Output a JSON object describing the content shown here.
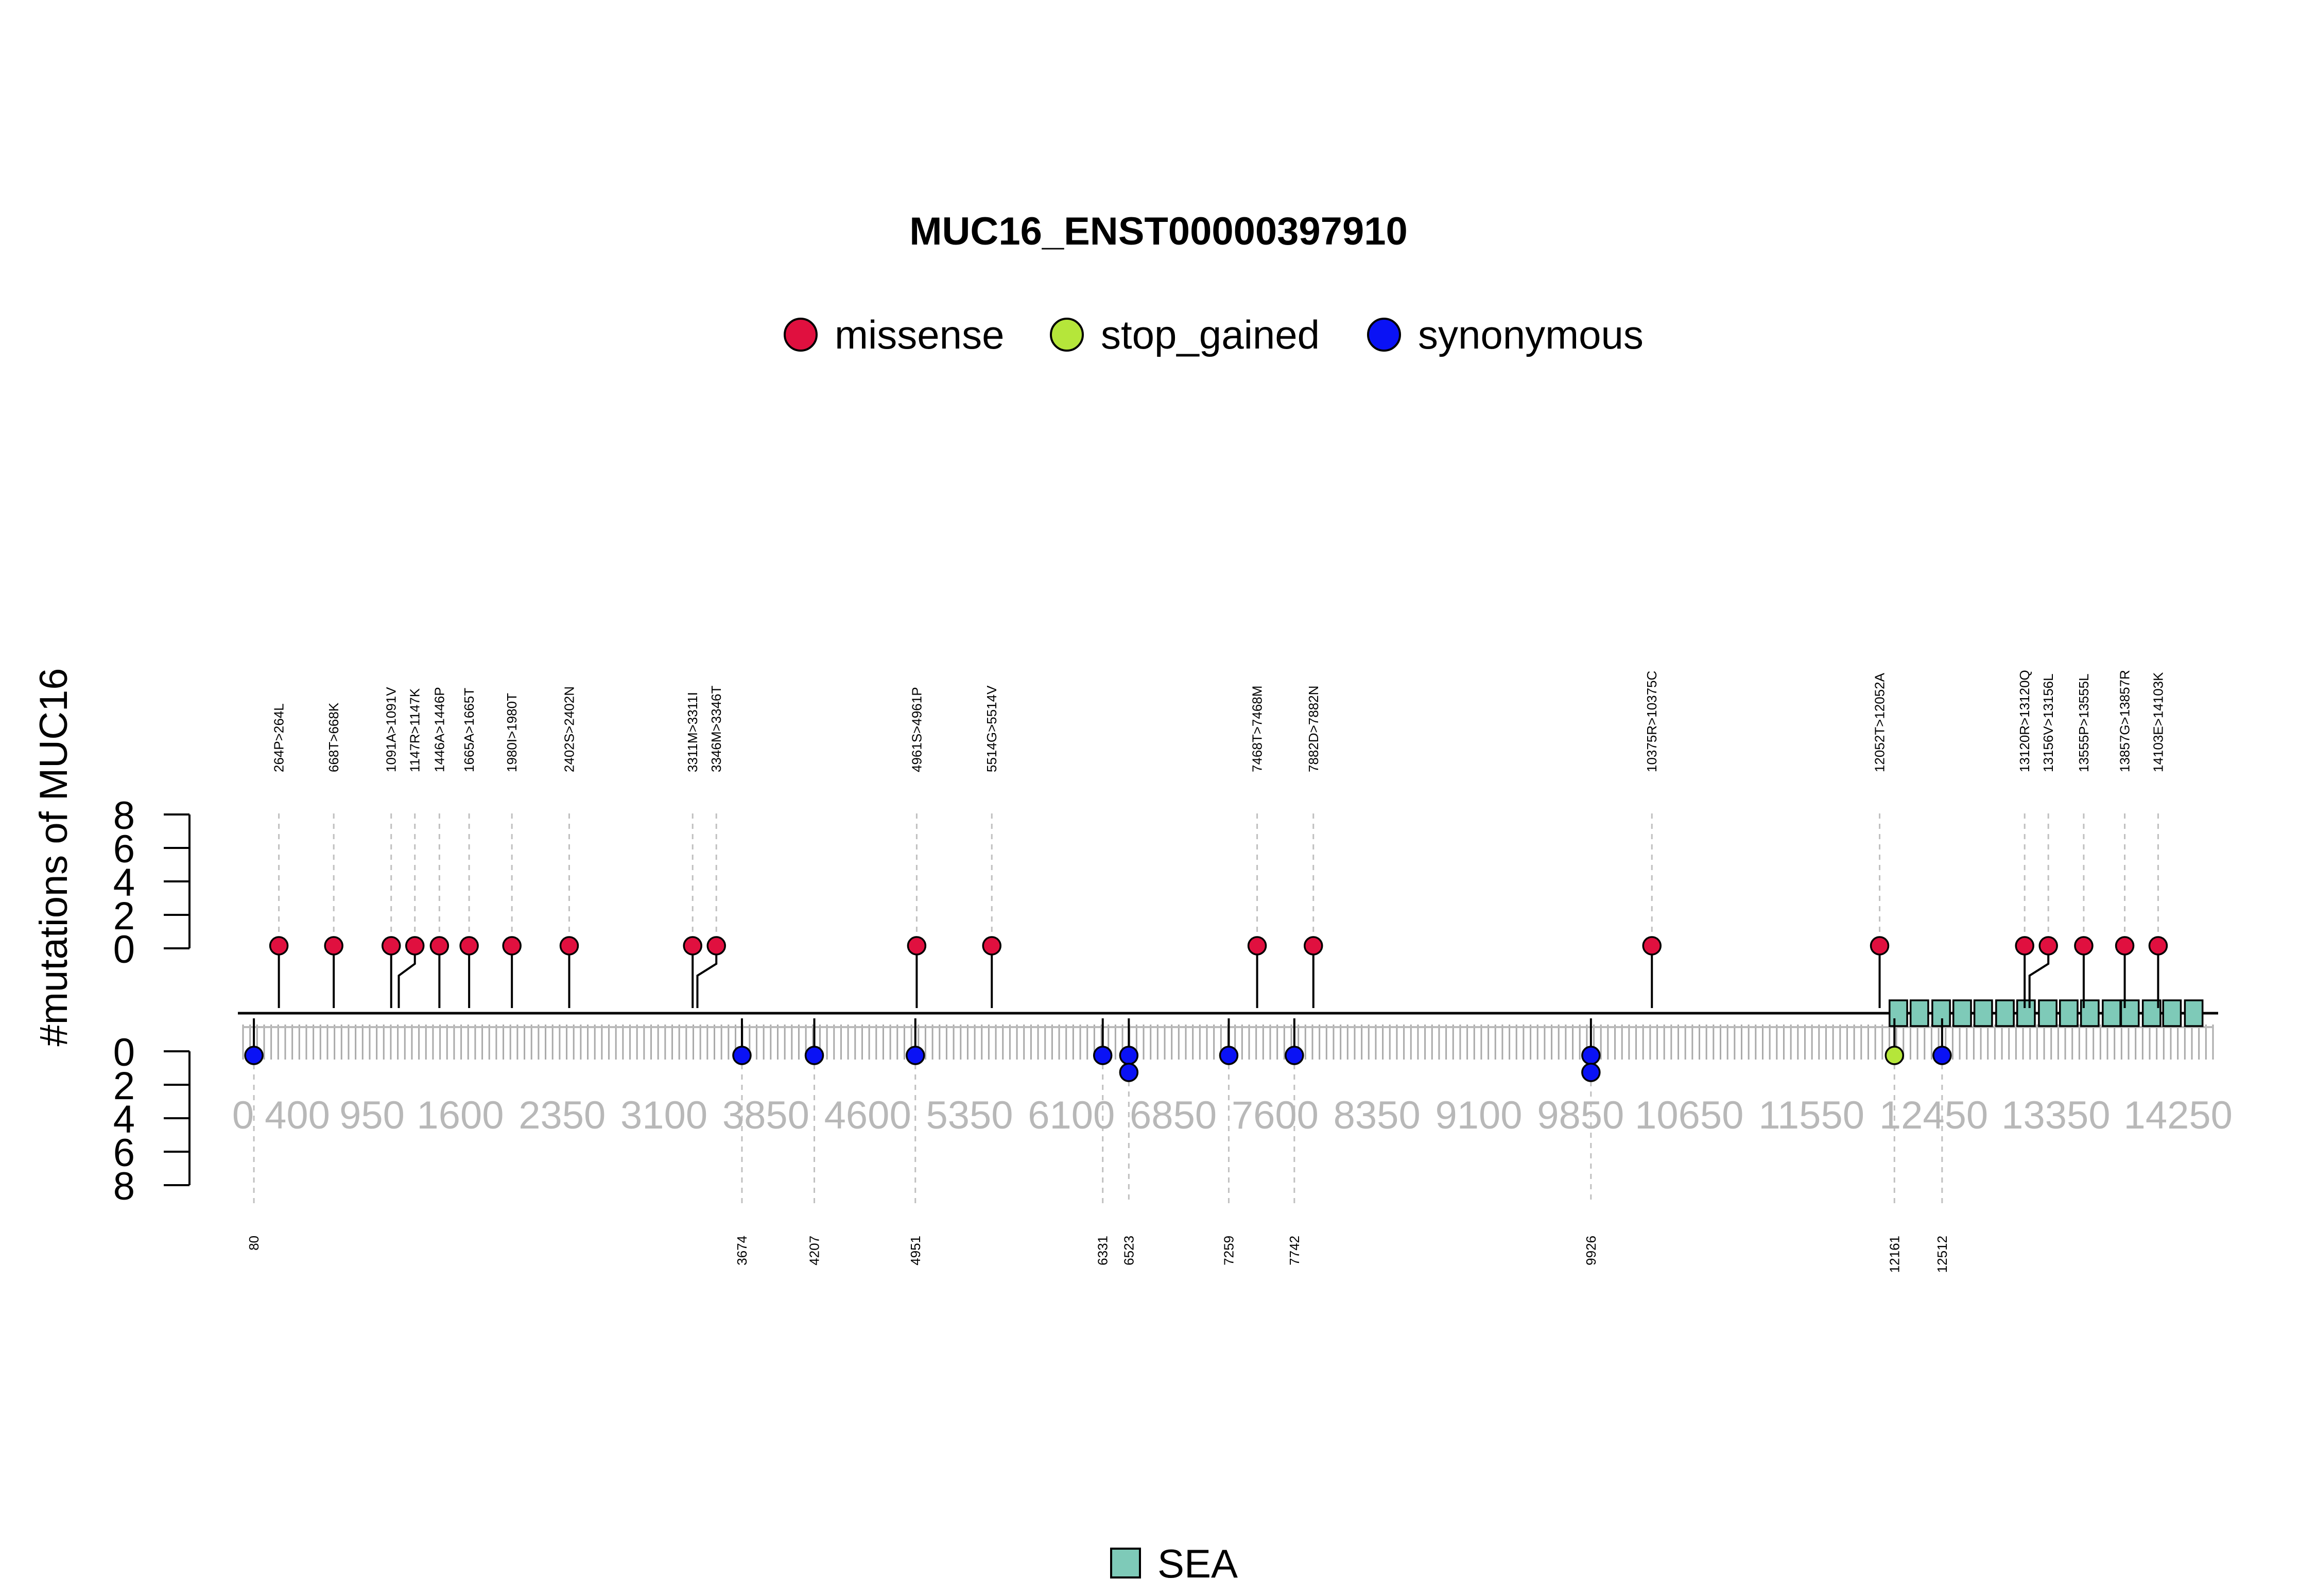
{
  "chart_data": {
    "type": "lollipop",
    "title": "MUC16_ENST00000397910",
    "ylabel": "#mutations of MUC16",
    "legend": [
      {
        "name": "missense",
        "color": "#e0103f"
      },
      {
        "name": "stop_gained",
        "color": "#b5e63a"
      },
      {
        "name": "synonymous",
        "color": "#0a12f5"
      }
    ],
    "domain_legend": [
      {
        "name": "SEA",
        "color": "#7ecab8"
      }
    ],
    "x_range": [
      0,
      14507
    ],
    "x_ticks": [
      "0",
      "400",
      "950",
      "1600",
      "2350",
      "3100",
      "3850",
      "4600",
      "5350",
      "6100",
      "6850",
      "7600",
      "8350",
      "9100",
      "9850",
      "10650",
      "11550",
      "12450",
      "13350",
      "14250"
    ],
    "x_tick_values": [
      0,
      400,
      950,
      1600,
      2350,
      3100,
      3850,
      4600,
      5350,
      6100,
      6850,
      7600,
      8350,
      9100,
      9850,
      10650,
      11550,
      12450,
      13350,
      14250
    ],
    "y_ticks_top": [
      "0",
      "2",
      "4",
      "6",
      "8"
    ],
    "y_ticks_bottom": [
      "0",
      "2",
      "4",
      "6",
      "8"
    ],
    "y_range": [
      0,
      8
    ],
    "top_mutations": [
      {
        "pos": 264,
        "count": 1,
        "type": "missense",
        "label": "264P>264L"
      },
      {
        "pos": 668,
        "count": 1,
        "type": "missense",
        "label": "668T>668K"
      },
      {
        "pos": 1091,
        "count": 1,
        "type": "missense",
        "label": "1091A>1091V"
      },
      {
        "pos": 1147,
        "count": 1,
        "type": "missense",
        "label": "1147R>1147K"
      },
      {
        "pos": 1446,
        "count": 1,
        "type": "missense",
        "label": "1446A>1446P"
      },
      {
        "pos": 1665,
        "count": 1,
        "type": "missense",
        "label": "1665A>1665T"
      },
      {
        "pos": 1980,
        "count": 1,
        "type": "missense",
        "label": "1980I>1980T"
      },
      {
        "pos": 2402,
        "count": 1,
        "type": "missense",
        "label": "2402S>2402N"
      },
      {
        "pos": 3311,
        "count": 1,
        "type": "missense",
        "label": "3311M>3311I"
      },
      {
        "pos": 3346,
        "count": 1,
        "type": "missense",
        "label": "3346M>3346T"
      },
      {
        "pos": 4961,
        "count": 1,
        "type": "missense",
        "label": "4961S>4961P"
      },
      {
        "pos": 5514,
        "count": 1,
        "type": "missense",
        "label": "5514G>5514V"
      },
      {
        "pos": 7468,
        "count": 1,
        "type": "missense",
        "label": "7468T>7468M"
      },
      {
        "pos": 7882,
        "count": 1,
        "type": "missense",
        "label": "7882D>7882N"
      },
      {
        "pos": 10375,
        "count": 1,
        "type": "missense",
        "label": "10375R>10375C"
      },
      {
        "pos": 12052,
        "count": 1,
        "type": "missense",
        "label": "12052T>12052A"
      },
      {
        "pos": 13120,
        "count": 1,
        "type": "missense",
        "label": "13120R>13120Q"
      },
      {
        "pos": 13156,
        "count": 1,
        "type": "missense",
        "label": "13156V>13156L"
      },
      {
        "pos": 13555,
        "count": 1,
        "type": "missense",
        "label": "13555P>13555L"
      },
      {
        "pos": 13857,
        "count": 1,
        "type": "missense",
        "label": "13857G>13857R"
      },
      {
        "pos": 14103,
        "count": 1,
        "type": "missense",
        "label": "14103E>14103K"
      }
    ],
    "bottom_mutations": [
      {
        "pos": 80,
        "count": 1,
        "type": "synonymous",
        "label": "80"
      },
      {
        "pos": 3674,
        "count": 1,
        "type": "synonymous",
        "label": "3674"
      },
      {
        "pos": 4207,
        "count": 1,
        "type": "synonymous",
        "label": "4207"
      },
      {
        "pos": 4951,
        "count": 1,
        "type": "synonymous",
        "label": "4951"
      },
      {
        "pos": 6331,
        "count": 1,
        "type": "synonymous",
        "label": "6331"
      },
      {
        "pos": 6523,
        "count": 2,
        "type": "synonymous",
        "label": "6523"
      },
      {
        "pos": 7259,
        "count": 1,
        "type": "synonymous",
        "label": "7259"
      },
      {
        "pos": 7742,
        "count": 1,
        "type": "synonymous",
        "label": "7742"
      },
      {
        "pos": 9926,
        "count": 2,
        "type": "synonymous",
        "label": "9926"
      },
      {
        "pos": 12161,
        "count": 1,
        "type": "stop_gained",
        "label": "12161"
      },
      {
        "pos": 12512,
        "count": 1,
        "type": "synonymous",
        "label": "12512"
      }
    ],
    "domains": [
      {
        "name": "SEA",
        "start": 12125,
        "end": 12255
      },
      {
        "name": "SEA",
        "start": 12280,
        "end": 12410
      },
      {
        "name": "SEA",
        "start": 12440,
        "end": 12570
      },
      {
        "name": "SEA",
        "start": 12595,
        "end": 12725
      },
      {
        "name": "SEA",
        "start": 12750,
        "end": 12880
      },
      {
        "name": "SEA",
        "start": 12910,
        "end": 13040
      },
      {
        "name": "SEA",
        "start": 13065,
        "end": 13195
      },
      {
        "name": "SEA",
        "start": 13225,
        "end": 13355
      },
      {
        "name": "SEA",
        "start": 13380,
        "end": 13510
      },
      {
        "name": "SEA",
        "start": 13535,
        "end": 13665
      },
      {
        "name": "SEA",
        "start": 13695,
        "end": 13825
      },
      {
        "name": "SEA",
        "start": 13830,
        "end": 13960
      },
      {
        "name": "SEA",
        "start": 13990,
        "end": 14120
      },
      {
        "name": "SEA",
        "start": 14140,
        "end": 14270
      },
      {
        "name": "SEA",
        "start": 14300,
        "end": 14430
      }
    ]
  }
}
